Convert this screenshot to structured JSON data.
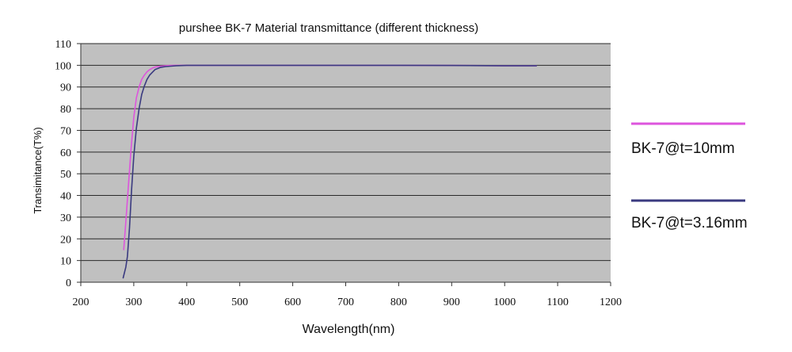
{
  "chart_data": {
    "type": "line",
    "title": "purshee BK-7 Material transmittance (different thickness)",
    "xlabel": "Wavelength(nm)",
    "ylabel": "Transimitance(T%)",
    "xlim": [
      200,
      1200
    ],
    "ylim": [
      0,
      110
    ],
    "x_ticks": [
      200,
      300,
      400,
      500,
      600,
      700,
      800,
      900,
      1000,
      1100,
      1200
    ],
    "y_ticks": [
      0,
      10,
      20,
      30,
      40,
      50,
      60,
      70,
      80,
      90,
      100,
      110
    ],
    "grid": "horizontal",
    "plot_background": "#c0c0c0",
    "legend_position": "right",
    "series": [
      {
        "name": "BK-7@t=10mm",
        "color": "#dd55dd",
        "x": [
          281,
          285,
          290,
          295,
          300,
          305,
          310,
          315,
          320,
          325,
          330,
          335,
          340,
          350,
          360,
          370,
          380,
          400,
          450,
          500,
          600,
          700,
          800,
          900,
          1000,
          1060
        ],
        "y": [
          15,
          28,
          45,
          62,
          76,
          85,
          90,
          93.5,
          95.5,
          97,
          98,
          98.7,
          99.2,
          99.6,
          99.8,
          99.9,
          100,
          100,
          100,
          100,
          100,
          100,
          100,
          99.9,
          99.8,
          99.8
        ]
      },
      {
        "name": "BK-7@t=3.16mm",
        "color": "#3a3a80",
        "x": [
          280,
          285,
          288,
          292,
          296,
          300,
          305,
          310,
          315,
          320,
          325,
          330,
          340,
          350,
          360,
          370,
          380,
          400,
          450,
          500,
          600,
          700,
          800,
          900,
          1000,
          1060
        ],
        "y": [
          2,
          7,
          12,
          25,
          43,
          58,
          71,
          80,
          86.5,
          90.5,
          93.5,
          95.5,
          98,
          99,
          99.4,
          99.6,
          99.8,
          100,
          100,
          100,
          100,
          100,
          100,
          99.9,
          99.8,
          99.8
        ]
      }
    ]
  }
}
